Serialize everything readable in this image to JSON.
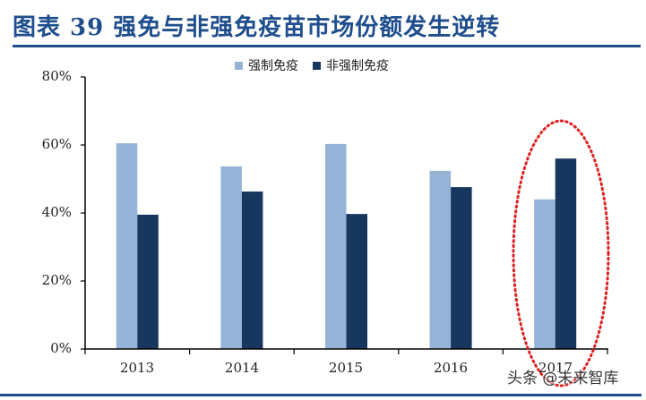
{
  "header": {
    "title": "图表 39   强免与非强免疫苗市场份额发生逆转"
  },
  "legend": {
    "items": [
      {
        "label": "强制免疫",
        "color": "#95b3d7"
      },
      {
        "label": "非强制免疫",
        "color": "#17375e"
      }
    ]
  },
  "axis": {
    "y_ticks": [
      "0%",
      "20%",
      "40%",
      "60%",
      "80%"
    ],
    "x_ticks": [
      "2013",
      "2014",
      "2015",
      "2016",
      "2017"
    ]
  },
  "annotation": {
    "highlight": "2017",
    "shape": "red-dotted-ellipse",
    "color": "#e02020"
  },
  "watermark": "头条 @未来智库",
  "chart_data": {
    "type": "bar",
    "title": "强免与非强免疫苗市场份额发生逆转",
    "figure_label": "图表 39",
    "categories": [
      "2013",
      "2014",
      "2015",
      "2016",
      "2017"
    ],
    "series": [
      {
        "name": "强制免疫",
        "color": "#95b3d7",
        "values": [
          60.5,
          53.7,
          60.3,
          52.4,
          44.0
        ]
      },
      {
        "name": "非强制免疫",
        "color": "#17375e",
        "values": [
          39.5,
          46.3,
          39.7,
          47.6,
          56.0
        ]
      }
    ],
    "xlabel": "",
    "ylabel": "",
    "ylim": [
      0,
      80
    ],
    "y_unit": "%",
    "grid": false,
    "legend_position": "top"
  }
}
